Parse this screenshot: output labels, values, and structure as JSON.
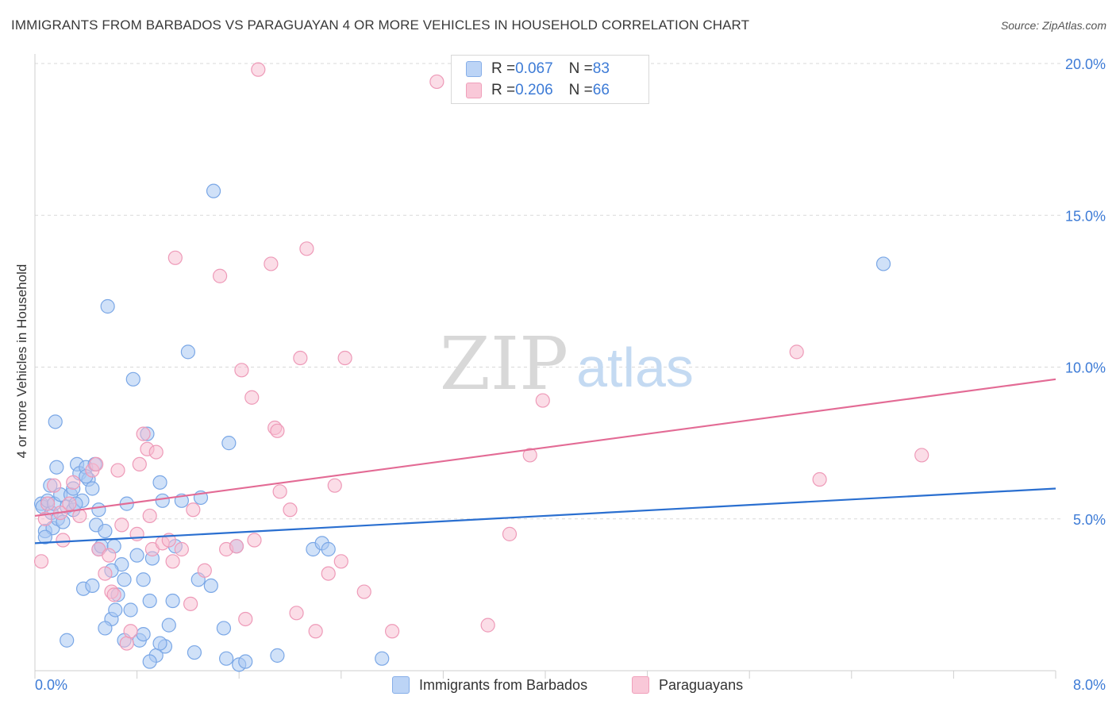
{
  "header": {
    "title": "IMMIGRANTS FROM BARBADOS VS PARAGUAYAN 4 OR MORE VEHICLES IN HOUSEHOLD CORRELATION CHART",
    "source": "Source: ZipAtlas.com"
  },
  "legend_top": {
    "rows": [
      {
        "r_label": "R = ",
        "r_value": "0.067",
        "n_label": "N = ",
        "n_value": "83"
      },
      {
        "r_label": "R = ",
        "r_value": "0.206",
        "n_label": "N = ",
        "n_value": "66"
      }
    ]
  },
  "legend_bottom": {
    "items": [
      {
        "label": "Immigrants from Barbados"
      },
      {
        "label": "Paraguayans"
      }
    ]
  },
  "watermark": {
    "zip": "ZIP",
    "atlas": "atlas"
  },
  "colors": {
    "blue_fill": "#aac8f2",
    "blue_stroke": "#7aa7e6",
    "blue_line": "#2a6fd0",
    "pink_fill": "#f7bcd0",
    "pink_stroke": "#ee9ab8",
    "pink_line": "#e36b95",
    "tick_label": "#3d7bd6",
    "grid": "#d9d9d9"
  },
  "chart_data": {
    "type": "scatter",
    "title": "IMMIGRANTS FROM BARBADOS VS PARAGUAYAN 4 OR MORE VEHICLES IN HOUSEHOLD CORRELATION CHART",
    "xlabel": "",
    "ylabel": "4 or more Vehicles in Household",
    "xlim": [
      0,
      8
    ],
    "ylim": [
      0,
      20
    ],
    "x_tick_labels": [
      "0.0%",
      "8.0%"
    ],
    "y_ticks": [
      5,
      10,
      15,
      20
    ],
    "y_tick_labels": [
      "5.0%",
      "10.0%",
      "15.0%",
      "20.0%"
    ],
    "grid": true,
    "series": [
      {
        "name": "Immigrants from Barbados",
        "R": 0.067,
        "N": 83,
        "trend": {
          "x": [
            0,
            8
          ],
          "y": [
            4.2,
            6.0
          ]
        },
        "points": [
          [
            0.05,
            5.5
          ],
          [
            0.06,
            5.4
          ],
          [
            0.08,
            4.6
          ],
          [
            0.1,
            5.6
          ],
          [
            0.12,
            6.1
          ],
          [
            0.13,
            5.2
          ],
          [
            0.14,
            4.7
          ],
          [
            0.15,
            5.5
          ],
          [
            0.16,
            8.2
          ],
          [
            0.17,
            6.7
          ],
          [
            0.18,
            5.0
          ],
          [
            0.2,
            5.8
          ],
          [
            0.22,
            4.9
          ],
          [
            0.25,
            5.4
          ],
          [
            0.28,
            5.8
          ],
          [
            0.3,
            6.0
          ],
          [
            0.3,
            5.3
          ],
          [
            0.33,
            6.8
          ],
          [
            0.35,
            6.5
          ],
          [
            0.37,
            5.6
          ],
          [
            0.4,
            6.7
          ],
          [
            0.42,
            6.3
          ],
          [
            0.45,
            6.0
          ],
          [
            0.47,
            6.8
          ],
          [
            0.48,
            4.8
          ],
          [
            0.5,
            5.3
          ],
          [
            0.5,
            4.0
          ],
          [
            0.52,
            4.1
          ],
          [
            0.55,
            4.6
          ],
          [
            0.57,
            12.0
          ],
          [
            0.6,
            1.7
          ],
          [
            0.62,
            4.1
          ],
          [
            0.63,
            2.0
          ],
          [
            0.65,
            2.5
          ],
          [
            0.68,
            3.5
          ],
          [
            0.7,
            1.0
          ],
          [
            0.72,
            5.5
          ],
          [
            0.75,
            2.0
          ],
          [
            0.77,
            9.6
          ],
          [
            0.8,
            3.8
          ],
          [
            0.82,
            1.0
          ],
          [
            0.85,
            3.0
          ],
          [
            0.88,
            7.8
          ],
          [
            0.9,
            2.3
          ],
          [
            0.92,
            3.7
          ],
          [
            0.95,
            0.5
          ],
          [
            0.98,
            6.2
          ],
          [
            1.0,
            5.6
          ],
          [
            1.02,
            0.8
          ],
          [
            1.05,
            1.5
          ],
          [
            1.08,
            2.3
          ],
          [
            1.1,
            4.1
          ],
          [
            1.15,
            5.6
          ],
          [
            1.2,
            10.5
          ],
          [
            1.25,
            0.6
          ],
          [
            1.28,
            3.0
          ],
          [
            1.3,
            5.7
          ],
          [
            1.38,
            2.8
          ],
          [
            1.4,
            15.8
          ],
          [
            1.48,
            1.4
          ],
          [
            1.5,
            0.4
          ],
          [
            1.52,
            7.5
          ],
          [
            1.58,
            4.1
          ],
          [
            1.6,
            0.2
          ],
          [
            1.65,
            0.3
          ],
          [
            1.9,
            0.5
          ],
          [
            2.18,
            4.0
          ],
          [
            2.25,
            4.2
          ],
          [
            2.3,
            4.0
          ],
          [
            2.72,
            0.4
          ],
          [
            6.65,
            13.4
          ],
          [
            0.38,
            2.7
          ],
          [
            0.45,
            2.8
          ],
          [
            0.6,
            3.3
          ],
          [
            0.08,
            4.4
          ],
          [
            0.25,
            1.0
          ],
          [
            0.4,
            6.4
          ],
          [
            0.85,
            1.2
          ],
          [
            0.98,
            0.9
          ],
          [
            0.55,
            1.4
          ],
          [
            0.32,
            5.5
          ],
          [
            0.7,
            3.0
          ],
          [
            0.9,
            0.3
          ]
        ]
      },
      {
        "name": "Paraguayans",
        "R": 0.206,
        "N": 66,
        "trend": {
          "x": [
            0,
            8
          ],
          "y": [
            5.1,
            9.6
          ]
        },
        "points": [
          [
            0.05,
            3.6
          ],
          [
            0.1,
            5.5
          ],
          [
            0.15,
            6.1
          ],
          [
            0.2,
            5.2
          ],
          [
            0.22,
            4.3
          ],
          [
            0.27,
            5.5
          ],
          [
            0.3,
            6.2
          ],
          [
            0.35,
            5.1
          ],
          [
            0.45,
            6.6
          ],
          [
            0.48,
            6.8
          ],
          [
            0.5,
            4.0
          ],
          [
            0.55,
            3.2
          ],
          [
            0.58,
            3.8
          ],
          [
            0.6,
            2.6
          ],
          [
            0.62,
            2.5
          ],
          [
            0.65,
            6.6
          ],
          [
            0.68,
            4.8
          ],
          [
            0.72,
            0.9
          ],
          [
            0.75,
            1.3
          ],
          [
            0.8,
            4.5
          ],
          [
            0.82,
            6.8
          ],
          [
            0.85,
            7.8
          ],
          [
            0.88,
            7.3
          ],
          [
            0.9,
            5.1
          ],
          [
            0.92,
            4.0
          ],
          [
            0.95,
            7.2
          ],
          [
            1.0,
            4.2
          ],
          [
            1.05,
            4.3
          ],
          [
            1.08,
            3.6
          ],
          [
            1.1,
            13.6
          ],
          [
            1.15,
            4.0
          ],
          [
            1.22,
            2.2
          ],
          [
            1.24,
            5.3
          ],
          [
            1.33,
            3.3
          ],
          [
            1.45,
            13.0
          ],
          [
            1.5,
            4.0
          ],
          [
            1.58,
            4.1
          ],
          [
            1.62,
            9.9
          ],
          [
            1.65,
            1.7
          ],
          [
            1.7,
            9.0
          ],
          [
            1.72,
            4.3
          ],
          [
            1.85,
            13.4
          ],
          [
            1.88,
            8.0
          ],
          [
            1.9,
            7.9
          ],
          [
            1.92,
            5.9
          ],
          [
            2.0,
            5.3
          ],
          [
            2.05,
            1.9
          ],
          [
            2.08,
            10.3
          ],
          [
            2.13,
            13.9
          ],
          [
            2.2,
            1.3
          ],
          [
            2.3,
            3.2
          ],
          [
            2.35,
            6.1
          ],
          [
            2.4,
            3.6
          ],
          [
            2.43,
            10.3
          ],
          [
            2.58,
            2.6
          ],
          [
            2.8,
            1.3
          ],
          [
            3.15,
            19.4
          ],
          [
            3.55,
            1.5
          ],
          [
            3.72,
            4.5
          ],
          [
            3.88,
            7.1
          ],
          [
            3.98,
            8.9
          ],
          [
            5.97,
            10.5
          ],
          [
            6.15,
            6.3
          ],
          [
            6.95,
            7.1
          ],
          [
            1.75,
            19.8
          ],
          [
            0.08,
            5.0
          ]
        ]
      }
    ]
  }
}
